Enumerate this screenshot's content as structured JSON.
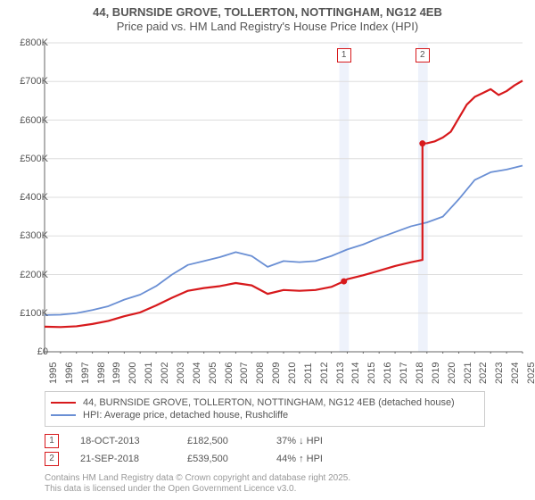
{
  "title": {
    "line1": "44, BURNSIDE GROVE, TOLLERTON, NOTTINGHAM, NG12 4EB",
    "line2": "Price paid vs. HM Land Registry's House Price Index (HPI)",
    "fontsize": 13,
    "color": "#555555"
  },
  "chart": {
    "type": "line",
    "background_color": "#ffffff",
    "grid_color": "#dddddd",
    "axis_color": "#666666",
    "x": {
      "min": 1995,
      "max": 2025,
      "ticks": [
        1995,
        1996,
        1997,
        1998,
        1999,
        2000,
        2001,
        2002,
        2003,
        2004,
        2005,
        2006,
        2007,
        2008,
        2009,
        2010,
        2011,
        2012,
        2013,
        2014,
        2015,
        2016,
        2017,
        2018,
        2019,
        2020,
        2021,
        2022,
        2023,
        2024,
        2025
      ]
    },
    "y": {
      "min": 0,
      "max": 800000,
      "ticks": [
        0,
        100000,
        200000,
        300000,
        400000,
        500000,
        600000,
        700000,
        800000
      ],
      "tick_labels": [
        "£0",
        "£100K",
        "£200K",
        "£300K",
        "£400K",
        "£500K",
        "£600K",
        "£700K",
        "£800K"
      ]
    },
    "highlight_bands": [
      {
        "from": 2013.5,
        "to": 2014.1,
        "color": "#eef2fb"
      },
      {
        "from": 2018.45,
        "to": 2019.05,
        "color": "#eef2fb"
      }
    ],
    "series": [
      {
        "name": "price_paid",
        "label": "44, BURNSIDE GROVE, TOLLERTON, NOTTINGHAM, NG12 4EB (detached house)",
        "color": "#d7191c",
        "line_width": 2.2,
        "data": [
          [
            1995,
            65000
          ],
          [
            1996,
            64000
          ],
          [
            1997,
            66000
          ],
          [
            1998,
            72000
          ],
          [
            1999,
            80000
          ],
          [
            2000,
            92000
          ],
          [
            2001,
            102000
          ],
          [
            2002,
            120000
          ],
          [
            2003,
            140000
          ],
          [
            2004,
            158000
          ],
          [
            2005,
            165000
          ],
          [
            2006,
            170000
          ],
          [
            2007,
            178000
          ],
          [
            2008,
            172000
          ],
          [
            2009,
            150000
          ],
          [
            2010,
            160000
          ],
          [
            2011,
            158000
          ],
          [
            2012,
            160000
          ],
          [
            2013,
            168000
          ],
          [
            2013.79,
            182500
          ],
          [
            2014,
            188000
          ],
          [
            2015,
            198000
          ],
          [
            2016,
            210000
          ],
          [
            2017,
            222000
          ],
          [
            2018,
            232000
          ],
          [
            2018.72,
            238000
          ],
          [
            2018.72,
            539500
          ],
          [
            2019,
            540000
          ],
          [
            2019.5,
            545000
          ],
          [
            2020,
            555000
          ],
          [
            2020.5,
            570000
          ],
          [
            2021,
            605000
          ],
          [
            2021.5,
            640000
          ],
          [
            2022,
            660000
          ],
          [
            2022.5,
            670000
          ],
          [
            2023,
            680000
          ],
          [
            2023.5,
            665000
          ],
          [
            2024,
            675000
          ],
          [
            2024.5,
            690000
          ],
          [
            2025,
            702000
          ]
        ],
        "markers": [
          {
            "id": "1",
            "x": 2013.79,
            "y": 182500
          },
          {
            "id": "2",
            "x": 2018.72,
            "y": 539500
          }
        ]
      },
      {
        "name": "hpi",
        "label": "HPI: Average price, detached house, Rushcliffe",
        "color": "#6a8fd4",
        "line_width": 1.8,
        "data": [
          [
            1995,
            95000
          ],
          [
            1996,
            96000
          ],
          [
            1997,
            100000
          ],
          [
            1998,
            108000
          ],
          [
            1999,
            118000
          ],
          [
            2000,
            135000
          ],
          [
            2001,
            148000
          ],
          [
            2002,
            170000
          ],
          [
            2003,
            200000
          ],
          [
            2004,
            225000
          ],
          [
            2005,
            235000
          ],
          [
            2006,
            245000
          ],
          [
            2007,
            258000
          ],
          [
            2008,
            248000
          ],
          [
            2009,
            220000
          ],
          [
            2010,
            235000
          ],
          [
            2011,
            232000
          ],
          [
            2012,
            235000
          ],
          [
            2013,
            248000
          ],
          [
            2014,
            265000
          ],
          [
            2015,
            278000
          ],
          [
            2016,
            295000
          ],
          [
            2017,
            310000
          ],
          [
            2018,
            325000
          ],
          [
            2019,
            335000
          ],
          [
            2020,
            350000
          ],
          [
            2021,
            395000
          ],
          [
            2022,
            445000
          ],
          [
            2023,
            465000
          ],
          [
            2024,
            472000
          ],
          [
            2025,
            482000
          ]
        ]
      }
    ],
    "marker_badges": [
      {
        "id": "1",
        "x": 2013.79,
        "color": "#d7191c"
      },
      {
        "id": "2",
        "x": 2018.72,
        "color": "#d7191c"
      }
    ]
  },
  "legend": {
    "items": [
      {
        "color": "#d7191c",
        "width": 2.5,
        "label": "44, BURNSIDE GROVE, TOLLERTON, NOTTINGHAM, NG12 4EB (detached house)"
      },
      {
        "color": "#6a8fd4",
        "width": 2,
        "label": "HPI: Average price, detached house, Rushcliffe"
      }
    ]
  },
  "transactions": [
    {
      "id": "1",
      "color": "#d7191c",
      "date": "18-OCT-2013",
      "price": "£182,500",
      "diff": "37% ↓ HPI"
    },
    {
      "id": "2",
      "color": "#d7191c",
      "date": "21-SEP-2018",
      "price": "£539,500",
      "diff": "44% ↑ HPI"
    }
  ],
  "footer": {
    "line1": "Contains HM Land Registry data © Crown copyright and database right 2025.",
    "line2": "This data is licensed under the Open Government Licence v3.0."
  }
}
